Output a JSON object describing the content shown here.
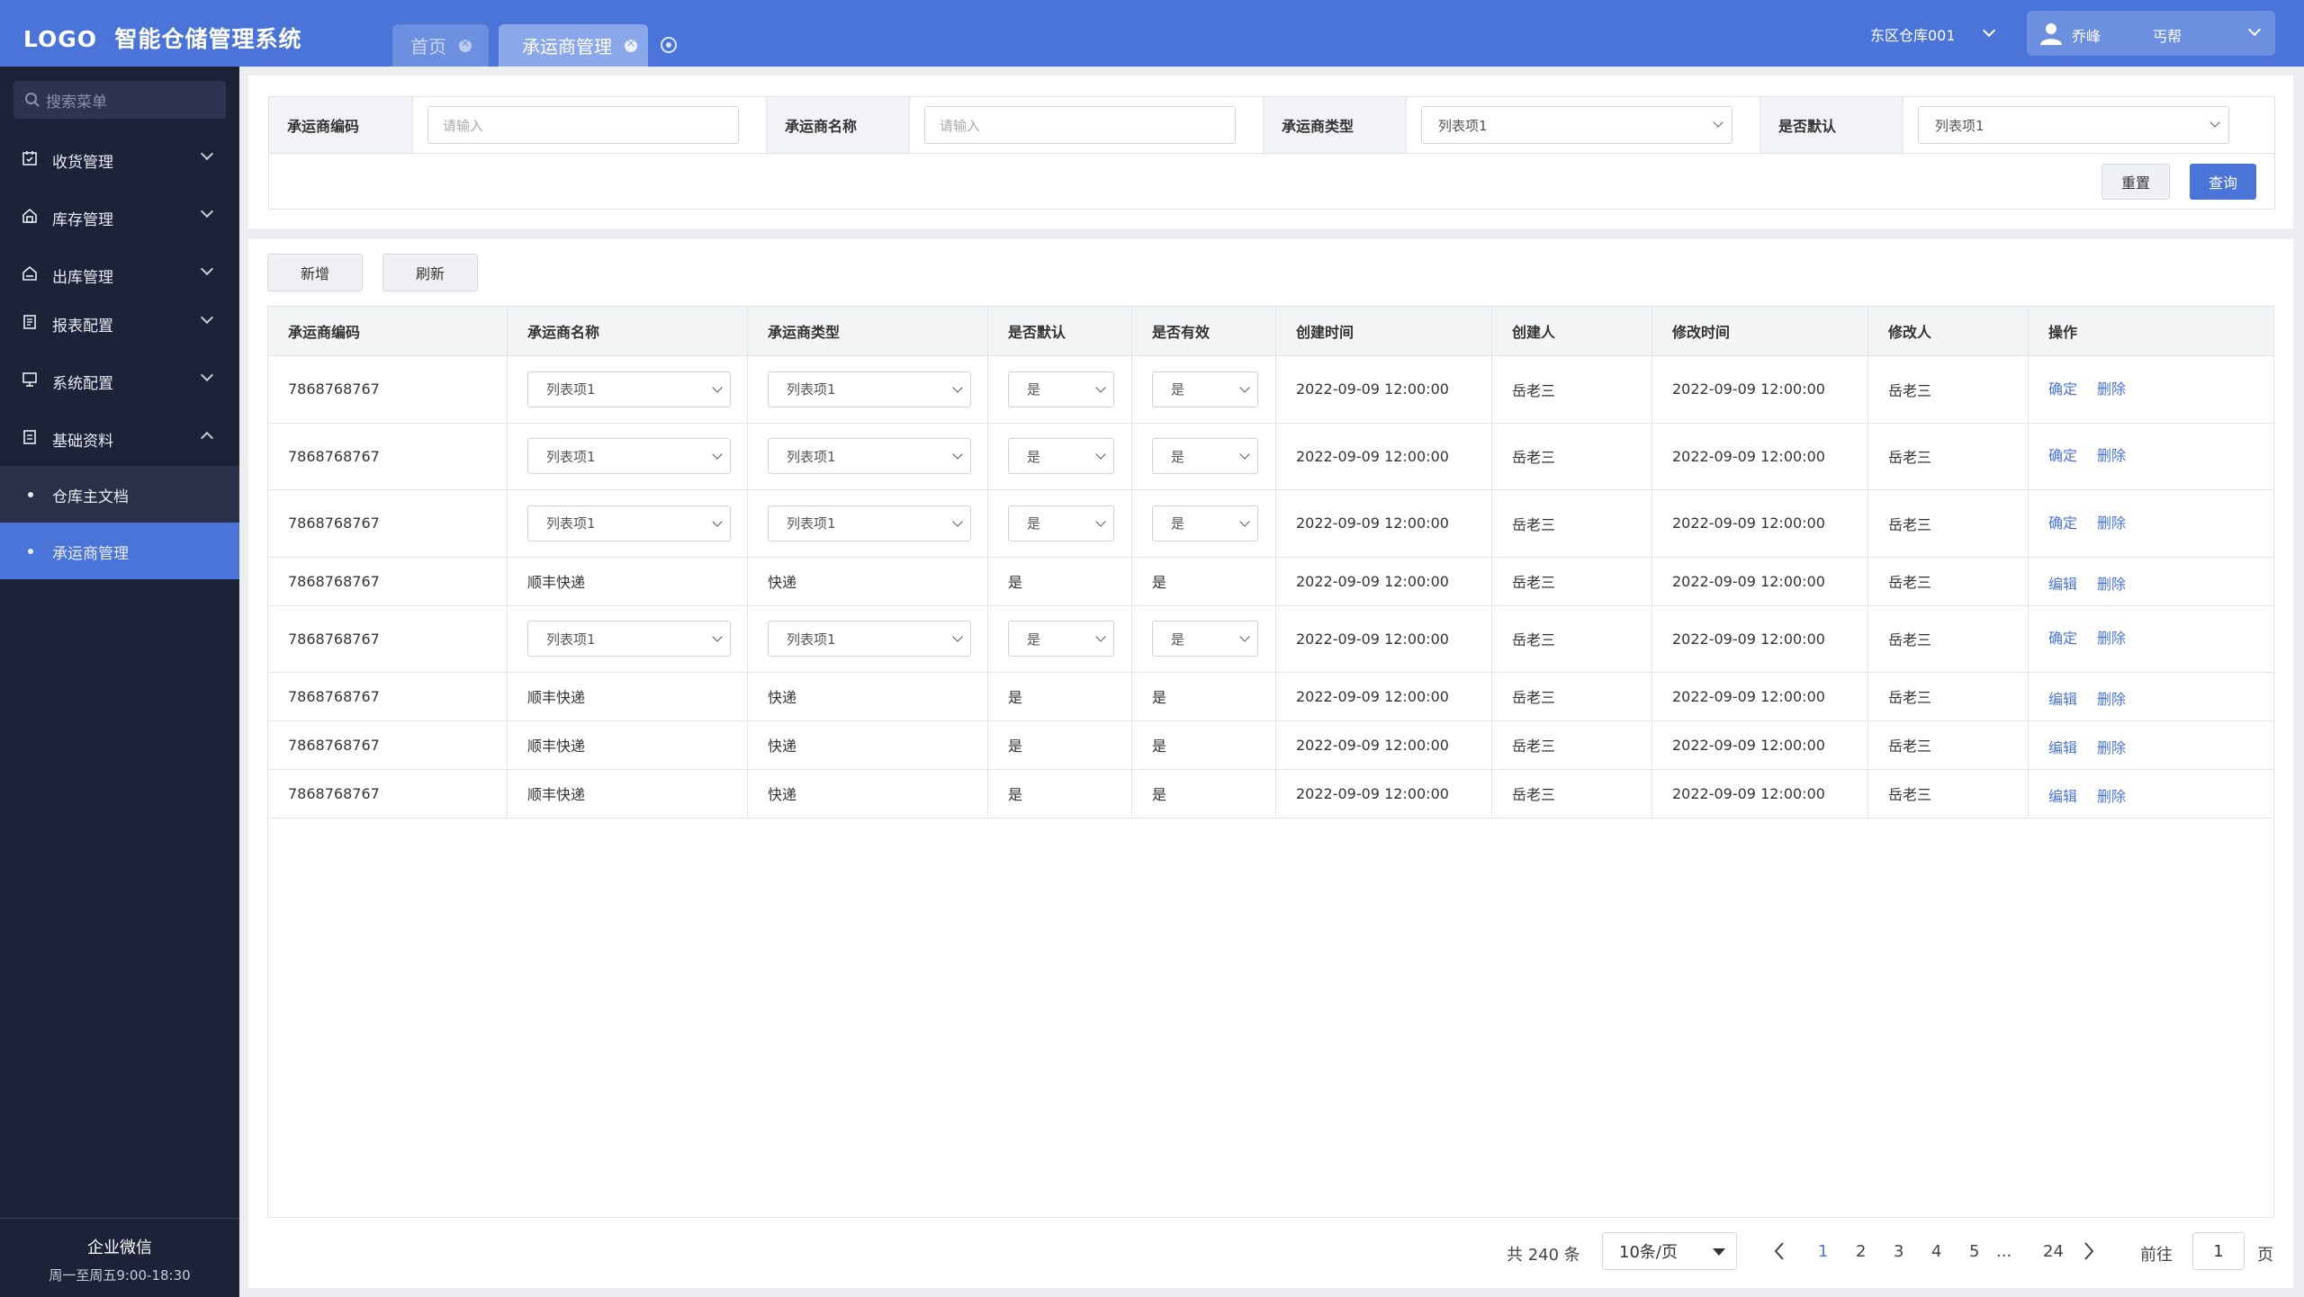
{
  "header": {
    "logo": "LOGO",
    "system_name": "智能仓储管理系统",
    "tabs": [
      {
        "label": "首页"
      },
      {
        "label": "承运商管理"
      }
    ],
    "warehouse": "东区仓库001",
    "user_name": "乔峰",
    "user_role": "丐帮"
  },
  "sidebar": {
    "search_placeholder": "搜索菜单",
    "menus": [
      {
        "label": "收货管理"
      },
      {
        "label": "库存管理"
      },
      {
        "label": "出库管理"
      },
      {
        "label": "报表配置"
      },
      {
        "label": "系统配置"
      },
      {
        "label": "基础资料"
      }
    ],
    "subitems": [
      {
        "label": "仓库主文档"
      },
      {
        "label": "承运商管理"
      }
    ],
    "footer_title": "企业微信",
    "footer_hours": "周一至周五9:00-18:30"
  },
  "filter": {
    "code_label": "承运商编码",
    "code_placeholder": "请输入",
    "name_label": "承运商名称",
    "name_placeholder": "请输入",
    "type_label": "承运商类型",
    "type_value": "列表项1",
    "default_label": "是否默认",
    "default_value": "列表项1",
    "reset": "重置",
    "query": "查询"
  },
  "toolbar": {
    "add": "新增",
    "refresh": "刷新"
  },
  "table": {
    "headers": [
      "承运商编码",
      "承运商名称",
      "承运商类型",
      "是否默认",
      "是否有效",
      "创建时间",
      "创建人",
      "修改时间",
      "修改人",
      "操作"
    ],
    "rows": [
      {
        "code": "7868768767",
        "name": "列表项1",
        "type": "列表项1",
        "is_default": "是",
        "is_valid": "是",
        "created": "2022-09-09 12:00:00",
        "creator": "岳老三",
        "modified": "2022-09-09 12:00:00",
        "modifier": "岳老三",
        "action1": "确定",
        "action2": "删除"
      },
      {
        "code": "7868768767",
        "name": "列表项1",
        "type": "列表项1",
        "is_default": "是",
        "is_valid": "是",
        "created": "2022-09-09 12:00:00",
        "creator": "岳老三",
        "modified": "2022-09-09 12:00:00",
        "modifier": "岳老三",
        "action1": "确定",
        "action2": "删除"
      },
      {
        "code": "7868768767",
        "name": "列表项1",
        "type": "列表项1",
        "is_default": "是",
        "is_valid": "是",
        "created": "2022-09-09 12:00:00",
        "creator": "岳老三",
        "modified": "2022-09-09 12:00:00",
        "modifier": "岳老三",
        "action1": "确定",
        "action2": "删除"
      },
      {
        "code": "7868768767",
        "name": "顺丰快递",
        "type": "快递",
        "is_default": "是",
        "is_valid": "是",
        "created": "2022-09-09 12:00:00",
        "creator": "岳老三",
        "modified": "2022-09-09 12:00:00",
        "modifier": "岳老三",
        "action1": "编辑",
        "action2": "删除"
      },
      {
        "code": "7868768767",
        "name": "列表项1",
        "type": "列表项1",
        "is_default": "是",
        "is_valid": "是",
        "created": "2022-09-09 12:00:00",
        "creator": "岳老三",
        "modified": "2022-09-09 12:00:00",
        "modifier": "岳老三",
        "action1": "确定",
        "action2": "删除"
      },
      {
        "code": "7868768767",
        "name": "顺丰快递",
        "type": "快递",
        "is_default": "是",
        "is_valid": "是",
        "created": "2022-09-09 12:00:00",
        "creator": "岳老三",
        "modified": "2022-09-09 12:00:00",
        "modifier": "岳老三",
        "action1": "编辑",
        "action2": "删除"
      },
      {
        "code": "7868768767",
        "name": "顺丰快递",
        "type": "快递",
        "is_default": "是",
        "is_valid": "是",
        "created": "2022-09-09 12:00:00",
        "creator": "岳老三",
        "modified": "2022-09-09 12:00:00",
        "modifier": "岳老三",
        "action1": "编辑",
        "action2": "删除"
      },
      {
        "code": "7868768767",
        "name": "顺丰快递",
        "type": "快递",
        "is_default": "是",
        "is_valid": "是",
        "created": "2022-09-09 12:00:00",
        "creator": "岳老三",
        "modified": "2022-09-09 12:00:00",
        "modifier": "岳老三",
        "action1": "编辑",
        "action2": "删除"
      }
    ]
  },
  "pagination": {
    "total": "共 240 条",
    "page_size": "10条/页",
    "pages": [
      "1",
      "2",
      "3",
      "4",
      "5"
    ],
    "ellipsis": "...",
    "last": "24",
    "goto_label": "前往",
    "goto_value": "1",
    "page_unit": "页",
    "current": "1"
  },
  "colors": {
    "primary": "#4a74d7",
    "sidebar": "#1c2238"
  }
}
